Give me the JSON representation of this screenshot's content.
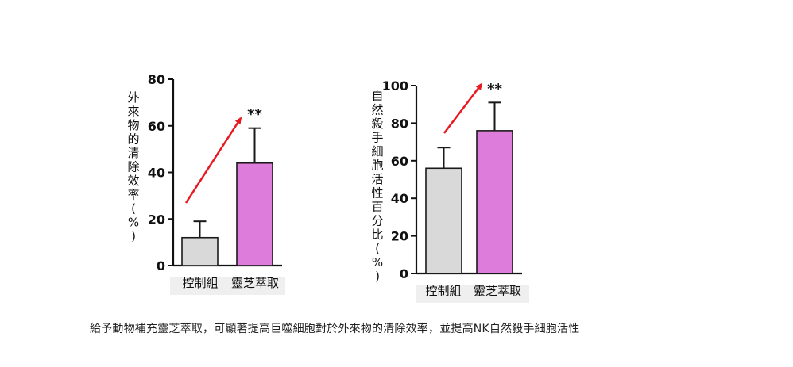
{
  "colors": {
    "control_bar": "#d9d9d9",
    "lingzhi_bar": "#dd7cdb",
    "bar_stroke": "#1a1a1a",
    "arrow": "#e8191f",
    "axis": "#111111",
    "tick_label_bg": "#efefef"
  },
  "chart_data": [
    {
      "type": "bar",
      "ylabel": "外來物的清除效率(%)",
      "categories": [
        "控制組",
        "靈芝萃取"
      ],
      "values": [
        12,
        44
      ],
      "error": [
        7,
        15
      ],
      "ylim": [
        0,
        80
      ],
      "yticks": [
        "0",
        "20",
        "40",
        "60",
        "80"
      ],
      "significance": "**",
      "trend_arrow": true
    },
    {
      "type": "bar",
      "ylabel": "自然殺手細胞活性百分比(%)",
      "categories": [
        "控制組",
        "靈芝萃取"
      ],
      "values": [
        56,
        76
      ],
      "error": [
        11,
        15
      ],
      "ylim": [
        0,
        100
      ],
      "yticks": [
        "0",
        "20",
        "40",
        "60",
        "80",
        "100"
      ],
      "significance": "**",
      "trend_arrow": true
    }
  ],
  "caption": "給予動物補充靈芝萃取，可顯著提高巨噬細胞對於外來物的清除效率，並提高NK自然殺手細胞活性"
}
